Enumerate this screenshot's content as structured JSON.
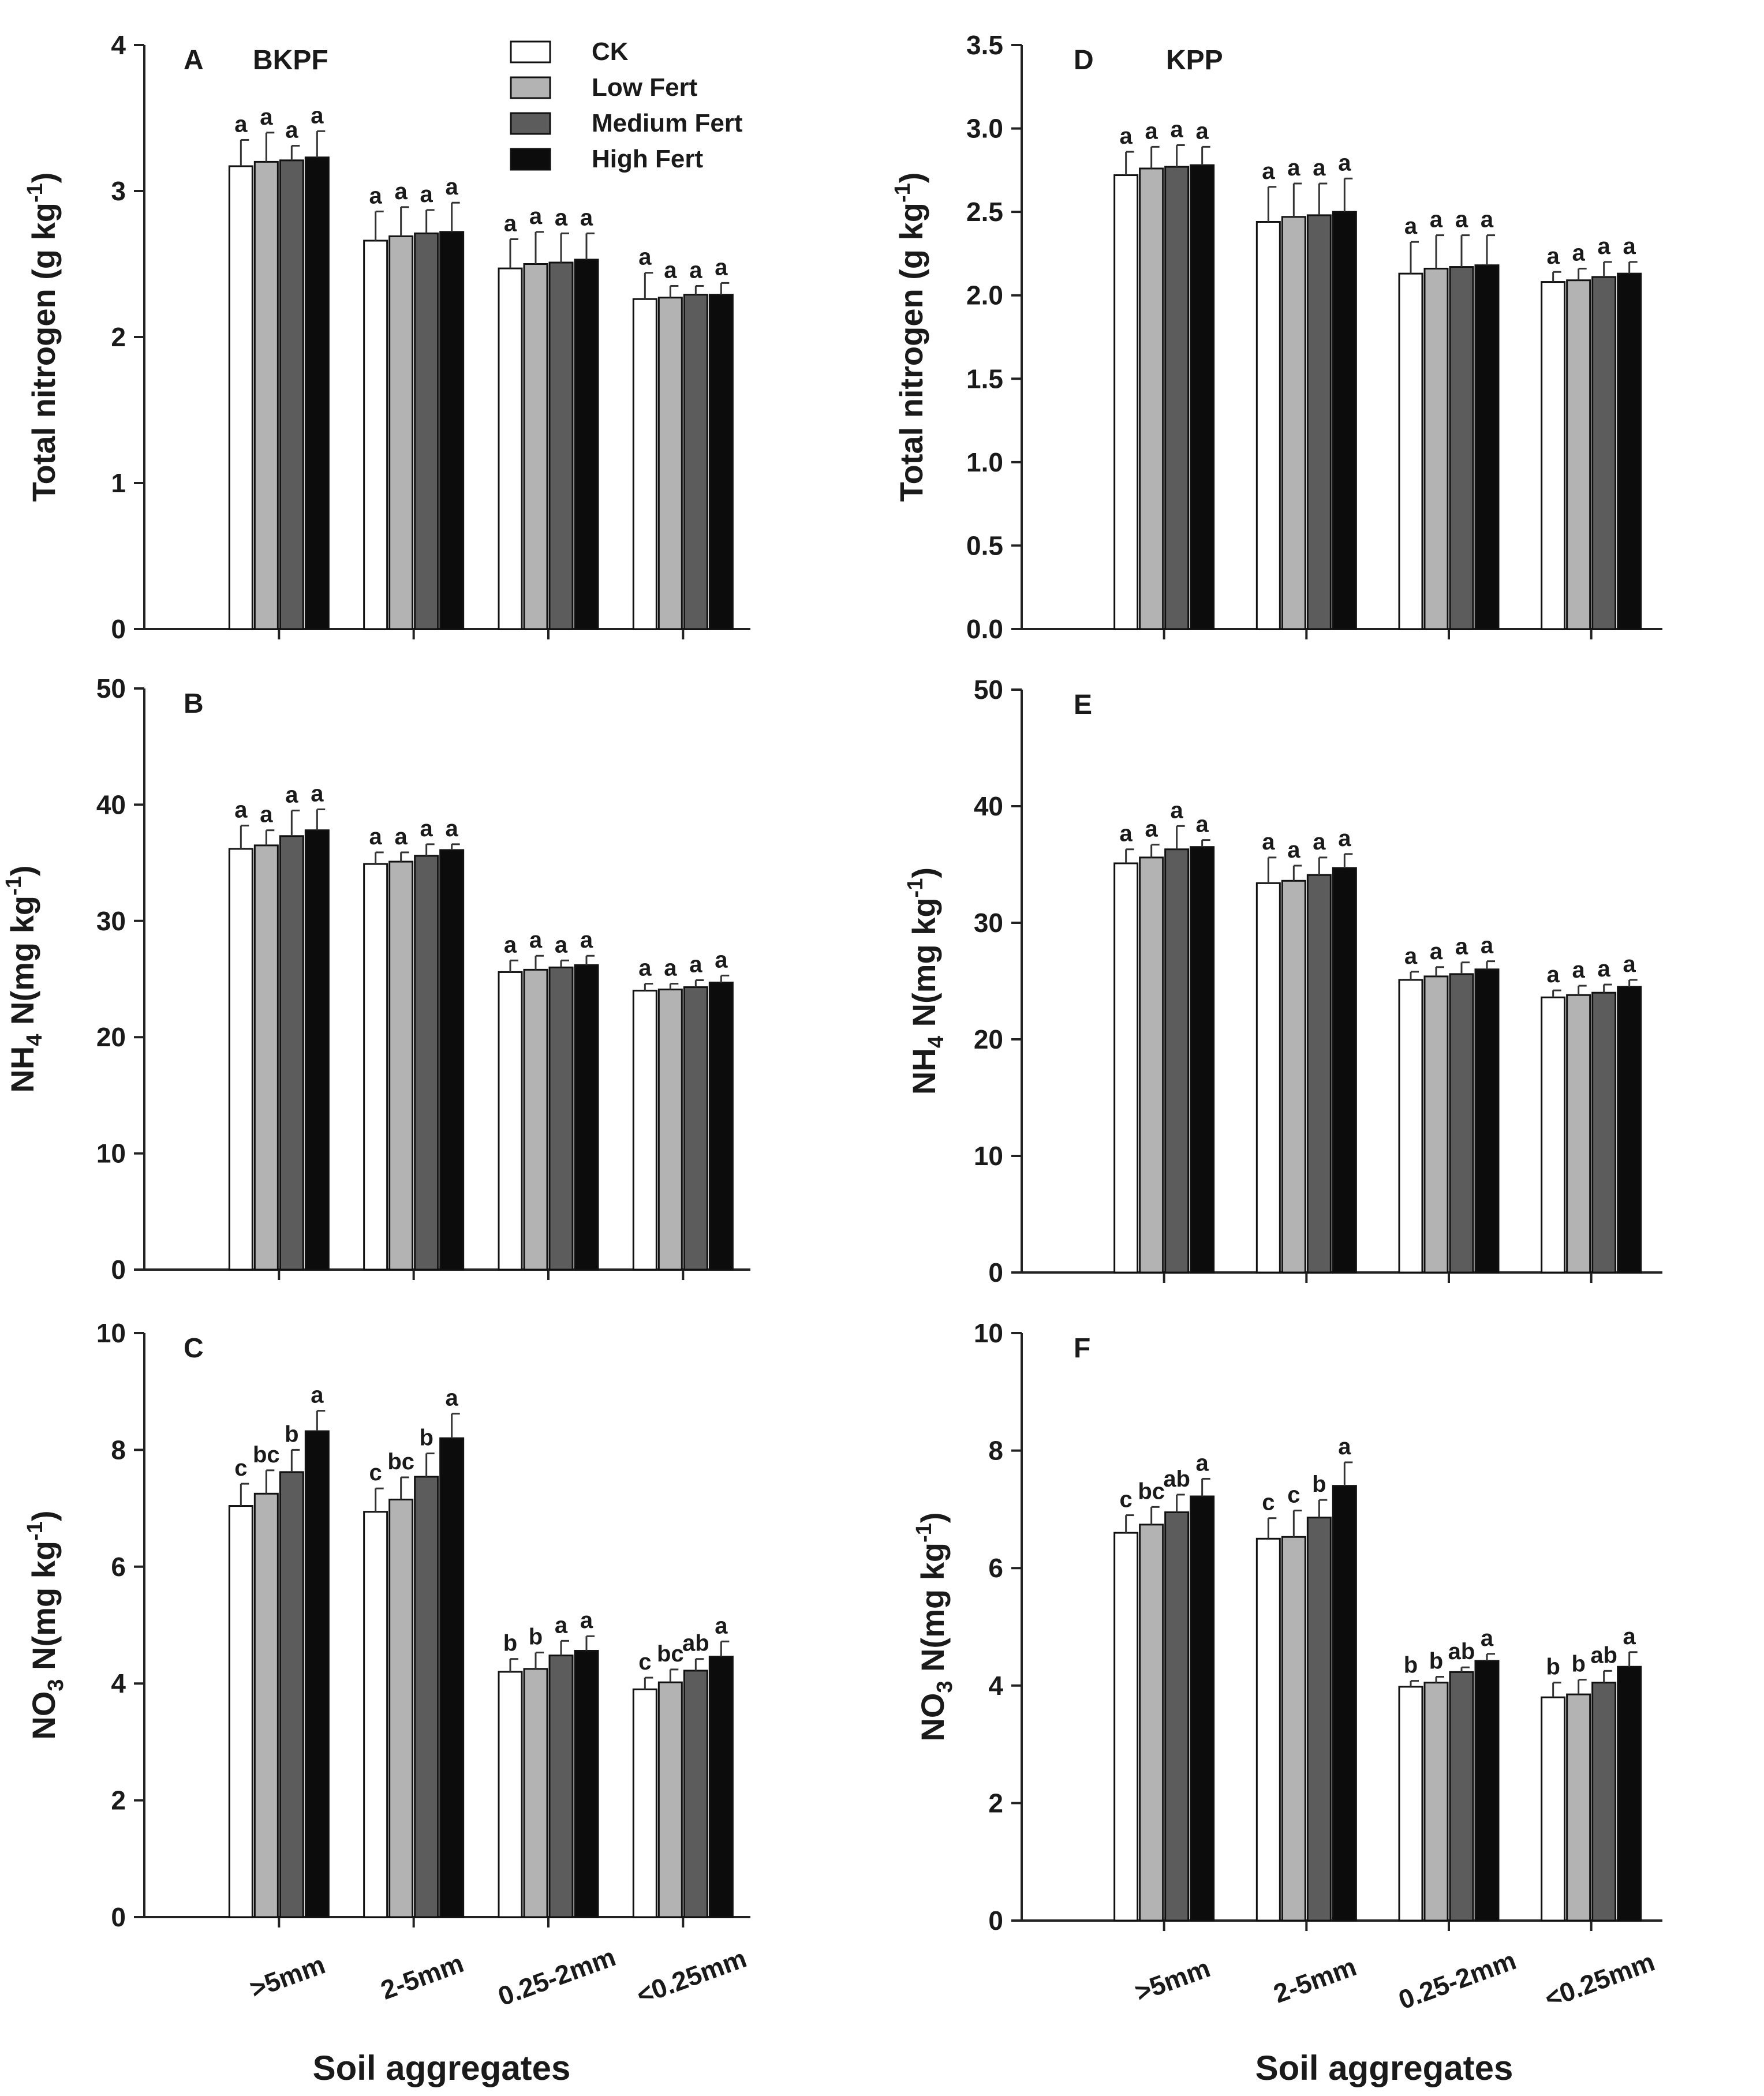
{
  "chart_data": [
    {
      "type": "bar",
      "panel": "A",
      "site": "BKPF",
      "ylabel": "Total nitrogen (g kg-1)",
      "ylabel_main": "Total nitrogen (g kg",
      "ylabel_sup": "-1",
      "ylabel_end": ")",
      "ylim": [
        0,
        4
      ],
      "yticks": [
        "0",
        "1",
        "2",
        "3",
        "4"
      ],
      "categories": [
        ">5mm",
        "2-5mm",
        "0.25-2mm",
        "<0.25mm"
      ],
      "series": [
        {
          "name": "CK",
          "values": [
            3.17,
            2.66,
            2.47,
            2.26
          ],
          "errors": [
            0.18,
            0.2,
            0.2,
            0.18
          ],
          "labels": [
            "a",
            "a",
            "a",
            "a"
          ]
        },
        {
          "name": "Low Fert",
          "values": [
            3.2,
            2.69,
            2.5,
            2.27
          ],
          "errors": [
            0.2,
            0.2,
            0.22,
            0.08
          ],
          "labels": [
            "a",
            "a",
            "a",
            "a"
          ]
        },
        {
          "name": "Medium Fert",
          "values": [
            3.21,
            2.71,
            2.51,
            2.29
          ],
          "errors": [
            0.1,
            0.16,
            0.2,
            0.06
          ],
          "labels": [
            "a",
            "a",
            "a",
            "a"
          ]
        },
        {
          "name": "High Fert",
          "values": [
            3.23,
            2.72,
            2.53,
            2.29
          ],
          "errors": [
            0.18,
            0.2,
            0.18,
            0.08
          ],
          "labels": [
            "a",
            "a",
            "a",
            "a"
          ]
        }
      ]
    },
    {
      "type": "bar",
      "panel": "B",
      "site": "",
      "ylabel": "NH4 N(mg kg-1)",
      "ylabel_main": "NH",
      "ylabel_sub": "4",
      "ylabel_mid": " N(mg kg",
      "ylabel_sup": "-1",
      "ylabel_end": ")",
      "ylim": [
        0,
        50
      ],
      "yticks": [
        "0",
        "10",
        "20",
        "30",
        "40",
        "50"
      ],
      "categories": [
        ">5mm",
        "2-5mm",
        "0.25-2mm",
        "<0.25mm"
      ],
      "series": [
        {
          "name": "CK",
          "values": [
            36.2,
            34.9,
            25.6,
            24.0
          ],
          "errors": [
            2.0,
            1.0,
            1.0,
            0.6
          ],
          "labels": [
            "a",
            "a",
            "a",
            "a"
          ]
        },
        {
          "name": "Low Fert",
          "values": [
            36.5,
            35.1,
            25.8,
            24.1
          ],
          "errors": [
            1.3,
            0.8,
            1.2,
            0.5
          ],
          "labels": [
            "a",
            "a",
            "a",
            "a"
          ]
        },
        {
          "name": "Medium Fert",
          "values": [
            37.3,
            35.6,
            26.0,
            24.3
          ],
          "errors": [
            2.2,
            1.0,
            0.6,
            0.6
          ],
          "labels": [
            "a",
            "a",
            "a",
            "a"
          ]
        },
        {
          "name": "High Fert",
          "values": [
            37.8,
            36.1,
            26.2,
            24.7
          ],
          "errors": [
            1.8,
            0.5,
            0.8,
            0.6
          ],
          "labels": [
            "a",
            "a",
            "a",
            "a"
          ]
        }
      ]
    },
    {
      "type": "bar",
      "panel": "C",
      "site": "",
      "ylabel": "NO3 N(mg kg-1)",
      "ylabel_main": "NO",
      "ylabel_sub": "3",
      "ylabel_mid": " N(mg kg",
      "ylabel_sup": "-1",
      "ylabel_end": ")",
      "ylim": [
        0,
        10
      ],
      "yticks": [
        "0",
        "2",
        "4",
        "6",
        "8",
        "10"
      ],
      "categories": [
        ">5mm",
        "2-5mm",
        "0.25-2mm",
        "<0.25mm"
      ],
      "series": [
        {
          "name": "CK",
          "values": [
            7.04,
            6.94,
            4.2,
            3.9
          ],
          "errors": [
            0.38,
            0.4,
            0.22,
            0.2
          ],
          "labels": [
            "c",
            "c",
            "b",
            "c"
          ]
        },
        {
          "name": "Low Fert",
          "values": [
            7.25,
            7.15,
            4.25,
            4.02
          ],
          "errors": [
            0.4,
            0.38,
            0.28,
            0.22
          ],
          "labels": [
            "bc",
            "bc",
            "b",
            "bc"
          ]
        },
        {
          "name": "Medium Fert",
          "values": [
            7.62,
            7.54,
            4.48,
            4.22
          ],
          "errors": [
            0.38,
            0.4,
            0.25,
            0.2
          ],
          "labels": [
            "b",
            "b",
            "a",
            "ab"
          ]
        },
        {
          "name": "High Fert",
          "values": [
            8.32,
            8.2,
            4.56,
            4.46
          ],
          "errors": [
            0.35,
            0.42,
            0.25,
            0.26
          ],
          "labels": [
            "a",
            "a",
            "a",
            "a"
          ]
        }
      ]
    },
    {
      "type": "bar",
      "panel": "D",
      "site": "KPP",
      "ylabel": "Total nitrogen (g kg-1)",
      "ylabel_main": "Total nitrogen (g kg",
      "ylabel_sup": "-1",
      "ylabel_end": ")",
      "ylim": [
        0,
        3.5
      ],
      "yticks": [
        "0.0",
        "0.5",
        "1.0",
        "1.5",
        "2.0",
        "2.5",
        "3.0",
        "3.5"
      ],
      "categories": [
        ">5mm",
        "2-5mm",
        "0.25-2mm",
        "<0.25mm"
      ],
      "series": [
        {
          "name": "CK",
          "values": [
            2.72,
            2.44,
            2.13,
            2.08
          ],
          "errors": [
            0.14,
            0.21,
            0.19,
            0.06
          ],
          "labels": [
            "a",
            "a",
            "a",
            "a"
          ]
        },
        {
          "name": "Low Fert",
          "values": [
            2.76,
            2.47,
            2.16,
            2.09
          ],
          "errors": [
            0.13,
            0.2,
            0.2,
            0.07
          ],
          "labels": [
            "a",
            "a",
            "a",
            "a"
          ]
        },
        {
          "name": "Medium Fert",
          "values": [
            2.77,
            2.48,
            2.17,
            2.11
          ],
          "errors": [
            0.13,
            0.19,
            0.19,
            0.09
          ],
          "labels": [
            "a",
            "a",
            "a",
            "a"
          ]
        },
        {
          "name": "High Fert",
          "values": [
            2.78,
            2.5,
            2.18,
            2.13
          ],
          "errors": [
            0.11,
            0.2,
            0.18,
            0.07
          ],
          "labels": [
            "a",
            "a",
            "a",
            "a"
          ]
        }
      ]
    },
    {
      "type": "bar",
      "panel": "E",
      "site": "",
      "ylabel": "NH4 N(mg kg-1)",
      "ylabel_main": "NH",
      "ylabel_sub": "4",
      "ylabel_mid": " N(mg kg",
      "ylabel_sup": "-1",
      "ylabel_end": ")",
      "ylim": [
        0,
        50
      ],
      "yticks": [
        "0",
        "10",
        "20",
        "30",
        "40",
        "50"
      ],
      "categories": [
        ">5mm",
        "2-5mm",
        "0.25-2mm",
        "<0.25mm"
      ],
      "series": [
        {
          "name": "CK",
          "values": [
            35.1,
            33.4,
            25.1,
            23.6
          ],
          "errors": [
            1.2,
            2.2,
            0.7,
            0.6
          ],
          "labels": [
            "a",
            "a",
            "a",
            "a"
          ]
        },
        {
          "name": "Low Fert",
          "values": [
            35.6,
            33.6,
            25.4,
            23.8
          ],
          "errors": [
            1.1,
            1.3,
            0.8,
            0.8
          ],
          "labels": [
            "a",
            "a",
            "a",
            "a"
          ]
        },
        {
          "name": "Medium Fert",
          "values": [
            36.3,
            34.1,
            25.6,
            24.0
          ],
          "errors": [
            2.0,
            1.5,
            1.0,
            0.7
          ],
          "labels": [
            "a",
            "a",
            "a",
            "a"
          ]
        },
        {
          "name": "High Fert",
          "values": [
            36.5,
            34.7,
            26.0,
            24.5
          ],
          "errors": [
            0.6,
            1.2,
            0.7,
            0.6
          ],
          "labels": [
            "a",
            "a",
            "a",
            "a"
          ]
        }
      ]
    },
    {
      "type": "bar",
      "panel": "F",
      "site": "",
      "ylabel": "NO3 N(mg kg-1)",
      "ylabel_main": "NO",
      "ylabel_sub": "3",
      "ylabel_mid": " N(mg kg",
      "ylabel_sup": "-1",
      "ylabel_end": ")",
      "ylim": [
        0,
        10
      ],
      "yticks": [
        "0",
        "2",
        "4",
        "6",
        "8",
        "10"
      ],
      "categories": [
        ">5mm",
        "2-5mm",
        "0.25-2mm",
        "<0.25mm"
      ],
      "series": [
        {
          "name": "CK",
          "values": [
            6.6,
            6.5,
            3.98,
            3.8
          ],
          "errors": [
            0.3,
            0.35,
            0.1,
            0.25
          ],
          "labels": [
            "c",
            "c",
            "b",
            "b"
          ]
        },
        {
          "name": "Low Fert",
          "values": [
            6.74,
            6.53,
            4.05,
            3.85
          ],
          "errors": [
            0.3,
            0.45,
            0.1,
            0.25
          ],
          "labels": [
            "bc",
            "c",
            "b",
            "b"
          ]
        },
        {
          "name": "Medium Fert",
          "values": [
            6.95,
            6.86,
            4.23,
            4.05
          ],
          "errors": [
            0.3,
            0.3,
            0.08,
            0.2
          ],
          "labels": [
            "ab",
            "b",
            "ab",
            "ab"
          ]
        },
        {
          "name": "High Fert",
          "values": [
            7.22,
            7.4,
            4.42,
            4.32
          ],
          "errors": [
            0.3,
            0.4,
            0.12,
            0.25
          ],
          "labels": [
            "a",
            "a",
            "a",
            "a"
          ]
        }
      ]
    }
  ],
  "legend": {
    "entries": [
      "CK",
      "Low Fert",
      "Medium Fert",
      "High Fert"
    ]
  },
  "series_colors": {
    "CK": "#ffffff",
    "Low Fert": "#b3b3b3",
    "Medium Fert": "#5c5c5c",
    "High Fert": "#0c0c0c"
  },
  "x_axis_title": "Soil aggregates"
}
